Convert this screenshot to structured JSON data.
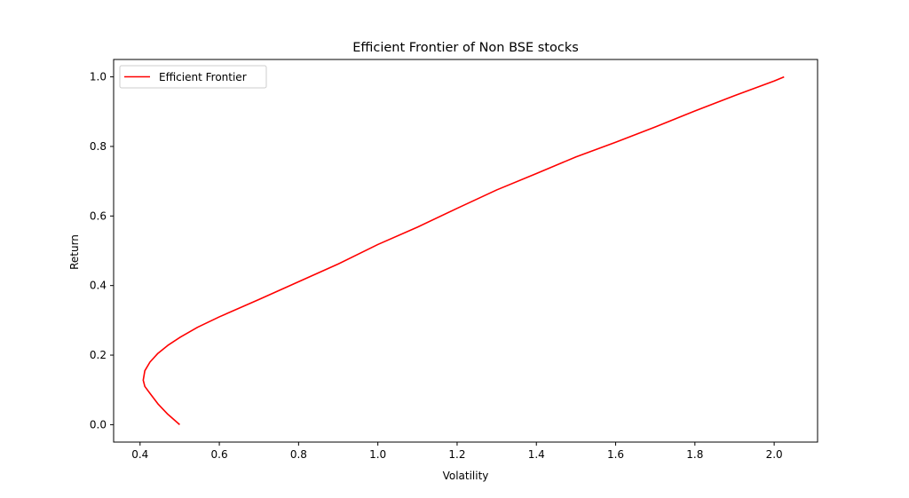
{
  "chart_data": {
    "type": "line",
    "title": "Efficient Frontier of Non BSE stocks",
    "xlabel": "Volatility",
    "ylabel": "Return",
    "xlim": [
      0.3333,
      2.1095
    ],
    "ylim": [
      -0.05,
      1.05
    ],
    "xticks": [
      0.4,
      0.6,
      0.8,
      1.0,
      1.2,
      1.4,
      1.6,
      1.8,
      2.0
    ],
    "yticks": [
      0.0,
      0.2,
      0.4,
      0.6,
      0.8,
      1.0
    ],
    "xtick_labels": [
      "0.4",
      "0.6",
      "0.8",
      "1.0",
      "1.2",
      "1.4",
      "1.6",
      "1.8",
      "2.0"
    ],
    "ytick_labels": [
      "0.0",
      "0.2",
      "0.4",
      "0.6",
      "0.8",
      "1.0"
    ],
    "grid": false,
    "legend_position": "top-left",
    "series": [
      {
        "name": "Efficient Frontier",
        "color": "#ff0000",
        "x": [
          0.5,
          0.47,
          0.445,
          0.425,
          0.412,
          0.408,
          0.412,
          0.425,
          0.445,
          0.47,
          0.502,
          0.545,
          0.6,
          0.7,
          0.8,
          0.9,
          1.0,
          1.1,
          1.2,
          1.3,
          1.4,
          1.5,
          1.6,
          1.7,
          1.8,
          1.9,
          2.0,
          2.025
        ],
        "y": [
          0.0,
          0.03,
          0.06,
          0.09,
          0.11,
          0.128,
          0.155,
          0.18,
          0.205,
          0.228,
          0.252,
          0.28,
          0.31,
          0.36,
          0.411,
          0.462,
          0.518,
          0.568,
          0.622,
          0.675,
          0.722,
          0.77,
          0.812,
          0.856,
          0.902,
          0.946,
          0.988,
          1.0
        ]
      }
    ]
  }
}
